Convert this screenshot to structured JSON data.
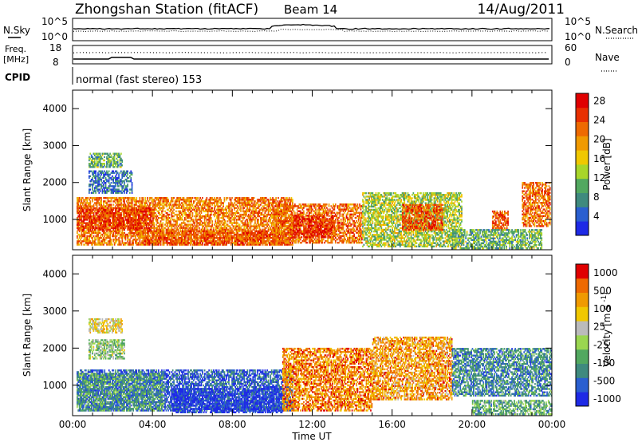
{
  "header": {
    "station": "Zhongshan Station (fitACF)",
    "beam": "Beam 14",
    "date": "14/Aug/2011"
  },
  "top_panels": {
    "nsky_label": "N.Sky",
    "nsky_hi": "10^5",
    "nsky_lo": "10^0",
    "nsearch_label": "N.Search",
    "nsearch_hi": "10^5",
    "nsearch_lo": "10^0",
    "freq_label": "Freq.",
    "freq_unit": "[MHz]",
    "freq_hi": "18",
    "freq_lo": "8",
    "nave_label": "Nave",
    "nave_hi": "60",
    "nave_lo": "0",
    "cpid_label": "CPID",
    "cpid_text": "normal (fast stereo) 153"
  },
  "chart_data": [
    {
      "type": "heatmap",
      "title": "",
      "ylabel": "Slant Range [km]",
      "xlabel": "Time UT",
      "xlim": [
        0,
        24
      ],
      "ylim": [
        180,
        4500
      ],
      "x_tick_labels": [
        "00:00",
        "04:00",
        "08:00",
        "12:00",
        "16:00",
        "20:00",
        "00:00"
      ],
      "y_ticks": [
        1000,
        2000,
        3000,
        4000
      ],
      "colorbar": {
        "label": "Power [dB]",
        "ticks": [
          "4",
          "8",
          "12",
          "16",
          "20",
          "24",
          "28"
        ],
        "colors": [
          "#1e2ae6",
          "#2a5fd0",
          "#3f8a7e",
          "#52a860",
          "#a8d62a",
          "#f0c800",
          "#f09a00",
          "#ee6a00",
          "#e83000",
          "#e00000"
        ]
      },
      "regions": [
        {
          "t0": 0.2,
          "t1": 11.0,
          "r0": 300,
          "r1": 1600,
          "level": 0.72
        },
        {
          "t0": 3.5,
          "t1": 11.0,
          "r0": 300,
          "r1": 700,
          "level": 0.8
        },
        {
          "t0": 0.2,
          "t1": 4.0,
          "r0": 700,
          "r1": 1300,
          "level": 0.85
        },
        {
          "t0": 10.0,
          "t1": 14.5,
          "r0": 350,
          "r1": 1400,
          "level": 0.75
        },
        {
          "t0": 11.0,
          "t1": 13.0,
          "r0": 500,
          "r1": 1100,
          "level": 0.9
        },
        {
          "t0": 14.5,
          "t1": 19.5,
          "r0": 250,
          "r1": 1700,
          "level": 0.45
        },
        {
          "t0": 16.5,
          "t1": 18.5,
          "r0": 700,
          "r1": 1400,
          "level": 0.8
        },
        {
          "t0": 21.0,
          "t1": 21.8,
          "r0": 700,
          "r1": 1200,
          "level": 0.78
        },
        {
          "t0": 22.5,
          "t1": 23.9,
          "r0": 800,
          "r1": 2000,
          "level": 0.75
        },
        {
          "t0": 19.0,
          "t1": 23.5,
          "r0": 200,
          "r1": 700,
          "level": 0.35
        },
        {
          "t0": 0.8,
          "t1": 3.0,
          "r0": 1700,
          "r1": 2300,
          "level": 0.2
        },
        {
          "t0": 0.8,
          "t1": 2.5,
          "r0": 2400,
          "r1": 2800,
          "level": 0.35
        }
      ]
    },
    {
      "type": "heatmap",
      "title": "",
      "ylabel": "Slant Range [km]",
      "xlabel": "Time UT",
      "xlim": [
        0,
        24
      ],
      "ylim": [
        180,
        4500
      ],
      "x_tick_labels": [
        "00:00",
        "04:00",
        "08:00",
        "12:00",
        "16:00",
        "20:00",
        "00:00"
      ],
      "y_ticks": [
        1000,
        2000,
        3000,
        4000
      ],
      "colorbar": {
        "label": "Velocity [m s^-1]",
        "ticks": [
          "1000",
          "500",
          "100",
          "25",
          "-25",
          "-100",
          "-500",
          "-1000"
        ],
        "colors": [
          "#1e2ae6",
          "#2a5fd0",
          "#3f8a7e",
          "#52a860",
          "#9ad650",
          "#bbbbbb",
          "#f0c800",
          "#f09a00",
          "#ee6a00",
          "#e00000"
        ]
      },
      "regions": [
        {
          "t0": 0.2,
          "t1": 11.0,
          "r0": 300,
          "r1": 1400,
          "level": 0.15
        },
        {
          "t0": 0.2,
          "t1": 4.5,
          "r0": 300,
          "r1": 1300,
          "level": 0.3
        },
        {
          "t0": 5.0,
          "t1": 10.5,
          "r0": 250,
          "r1": 900,
          "level": 0.05
        },
        {
          "t0": 10.5,
          "t1": 15.0,
          "r0": 300,
          "r1": 2000,
          "level": 0.8
        },
        {
          "t0": 15.0,
          "t1": 19.0,
          "r0": 600,
          "r1": 2300,
          "level": 0.75
        },
        {
          "t0": 19.0,
          "t1": 24.0,
          "r0": 700,
          "r1": 2000,
          "level": 0.25
        },
        {
          "t0": 20.0,
          "t1": 24.0,
          "r0": 200,
          "r1": 600,
          "level": 0.35
        },
        {
          "t0": 0.8,
          "t1": 2.6,
          "r0": 1700,
          "r1": 2200,
          "level": 0.45
        },
        {
          "t0": 0.8,
          "t1": 2.5,
          "r0": 2400,
          "r1": 2800,
          "level": 0.6
        }
      ]
    }
  ]
}
